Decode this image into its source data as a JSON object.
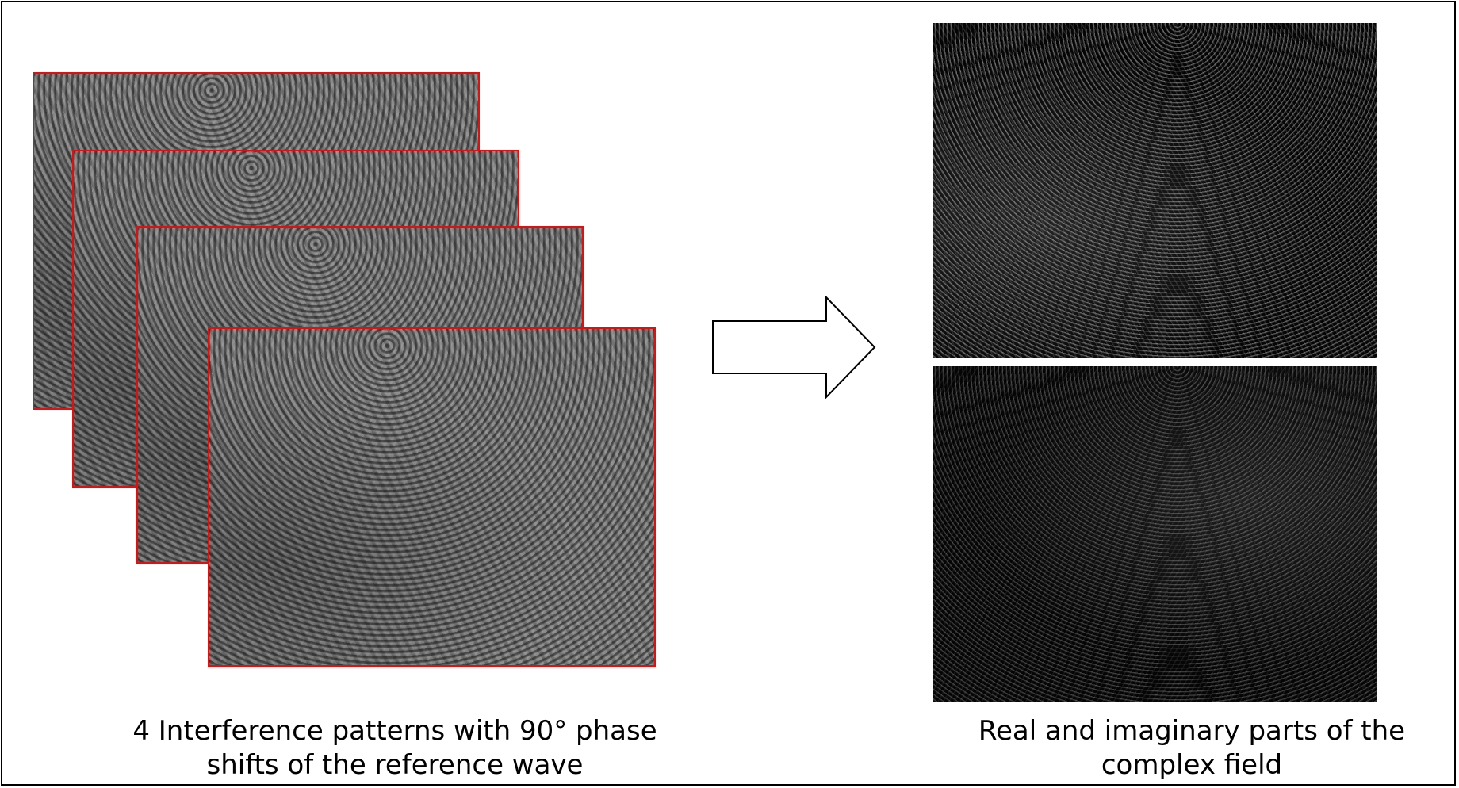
{
  "left_caption": {
    "line1": "4 Interference patterns with 90° phase",
    "line2": "shifts of the reference wave"
  },
  "right_caption": {
    "line1": "Real and imaginary parts of the",
    "line2": "complex field"
  },
  "colors": {
    "frame_border": "#000000",
    "pattern_border": "#e01010",
    "arrow_stroke": "#000000",
    "arrow_fill": "#ffffff"
  },
  "icons": {
    "arrow": "right-arrow-icon"
  }
}
